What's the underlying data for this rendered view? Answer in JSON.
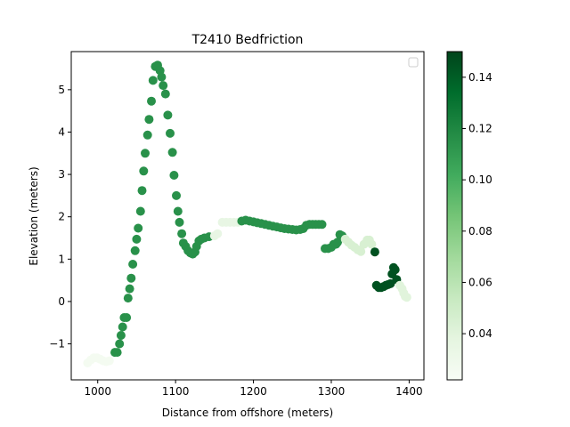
{
  "chart_data": {
    "type": "scatter",
    "title": "T2410 Bedfriction",
    "xlabel": "Distance from offshore (meters)",
    "ylabel": "Elevation (meters)",
    "xlim": [
      966,
      1419
    ],
    "ylim": [
      -1.85,
      5.9
    ],
    "xticks": [
      1000,
      1100,
      1200,
      1300,
      1400
    ],
    "yticks": [
      -1,
      0,
      1,
      2,
      3,
      4,
      5
    ],
    "grid": false,
    "legend": {
      "placement": "upper right",
      "entries": []
    },
    "colorbar": {
      "colormap": "Greens",
      "min": 0.022,
      "max": 0.15,
      "ticks": [
        "0.04",
        "0.06",
        "0.08",
        "0.10",
        "0.12",
        "0.14"
      ]
    },
    "points": [
      [
        987,
        -1.45,
        0.025
      ],
      [
        991,
        -1.38,
        0.025
      ],
      [
        995,
        -1.33,
        0.025
      ],
      [
        999,
        -1.33,
        0.025
      ],
      [
        1003,
        -1.36,
        0.025
      ],
      [
        1007,
        -1.4,
        0.025
      ],
      [
        1011,
        -1.42,
        0.025
      ],
      [
        1015,
        -1.4,
        0.025
      ],
      [
        1022,
        -1.2,
        0.115
      ],
      [
        1025,
        -1.2,
        0.115
      ],
      [
        1028,
        -1.0,
        0.115
      ],
      [
        1030,
        -0.8,
        0.115
      ],
      [
        1032,
        -0.6,
        0.115
      ],
      [
        1034,
        -0.38,
        0.115
      ],
      [
        1037,
        -0.38,
        0.115
      ],
      [
        1039,
        0.08,
        0.115
      ],
      [
        1041,
        0.3,
        0.115
      ],
      [
        1043,
        0.55,
        0.115
      ],
      [
        1045,
        0.88,
        0.115
      ],
      [
        1048,
        1.2,
        0.115
      ],
      [
        1050,
        1.47,
        0.115
      ],
      [
        1052,
        1.73,
        0.115
      ],
      [
        1055,
        2.13,
        0.115
      ],
      [
        1057,
        2.62,
        0.115
      ],
      [
        1059,
        3.08,
        0.115
      ],
      [
        1061,
        3.5,
        0.115
      ],
      [
        1064,
        3.93,
        0.115
      ],
      [
        1066,
        4.3,
        0.115
      ],
      [
        1069,
        4.73,
        0.115
      ],
      [
        1071,
        5.22,
        0.115
      ],
      [
        1074,
        5.55,
        0.115
      ],
      [
        1077,
        5.58,
        0.115
      ],
      [
        1080,
        5.45,
        0.115
      ],
      [
        1082,
        5.3,
        0.115
      ],
      [
        1084,
        5.1,
        0.115
      ],
      [
        1087,
        4.9,
        0.115
      ],
      [
        1090,
        4.4,
        0.115
      ],
      [
        1093,
        3.97,
        0.115
      ],
      [
        1096,
        3.52,
        0.115
      ],
      [
        1098,
        2.98,
        0.115
      ],
      [
        1101,
        2.5,
        0.115
      ],
      [
        1103,
        2.13,
        0.115
      ],
      [
        1105,
        1.87,
        0.115
      ],
      [
        1108,
        1.6,
        0.115
      ],
      [
        1110,
        1.38,
        0.115
      ],
      [
        1113,
        1.3,
        0.115
      ],
      [
        1116,
        1.2,
        0.115
      ],
      [
        1119,
        1.15,
        0.115
      ],
      [
        1122,
        1.12,
        0.115
      ],
      [
        1125,
        1.17,
        0.115
      ],
      [
        1127,
        1.3,
        0.115
      ],
      [
        1130,
        1.43,
        0.115
      ],
      [
        1133,
        1.47,
        0.115
      ],
      [
        1137,
        1.5,
        0.115
      ],
      [
        1143,
        1.53,
        0.115
      ],
      [
        1150,
        1.55,
        0.035
      ],
      [
        1154,
        1.6,
        0.035
      ],
      [
        1160,
        1.87,
        0.035
      ],
      [
        1165,
        1.87,
        0.035
      ],
      [
        1170,
        1.87,
        0.035
      ],
      [
        1175,
        1.87,
        0.035
      ],
      [
        1180,
        1.87,
        0.035
      ],
      [
        1185,
        1.9,
        0.115
      ],
      [
        1190,
        1.92,
        0.115
      ],
      [
        1195,
        1.9,
        0.115
      ],
      [
        1200,
        1.88,
        0.115
      ],
      [
        1205,
        1.86,
        0.115
      ],
      [
        1210,
        1.84,
        0.115
      ],
      [
        1215,
        1.82,
        0.115
      ],
      [
        1220,
        1.8,
        0.115
      ],
      [
        1225,
        1.78,
        0.115
      ],
      [
        1230,
        1.76,
        0.115
      ],
      [
        1235,
        1.74,
        0.115
      ],
      [
        1240,
        1.72,
        0.115
      ],
      [
        1245,
        1.71,
        0.115
      ],
      [
        1250,
        1.7,
        0.115
      ],
      [
        1255,
        1.69,
        0.115
      ],
      [
        1260,
        1.7,
        0.115
      ],
      [
        1264,
        1.72,
        0.115
      ],
      [
        1268,
        1.8,
        0.115
      ],
      [
        1272,
        1.82,
        0.115
      ],
      [
        1276,
        1.82,
        0.115
      ],
      [
        1280,
        1.82,
        0.115
      ],
      [
        1284,
        1.82,
        0.115
      ],
      [
        1288,
        1.82,
        0.115
      ],
      [
        1292,
        1.25,
        0.115
      ],
      [
        1296,
        1.25,
        0.115
      ],
      [
        1300,
        1.28,
        0.115
      ],
      [
        1303,
        1.35,
        0.115
      ],
      [
        1306,
        1.35,
        0.115
      ],
      [
        1308,
        1.4,
        0.115
      ],
      [
        1311,
        1.58,
        0.115
      ],
      [
        1314,
        1.55,
        0.115
      ],
      [
        1318,
        1.47,
        0.045
      ],
      [
        1322,
        1.4,
        0.045
      ],
      [
        1326,
        1.33,
        0.045
      ],
      [
        1330,
        1.28,
        0.045
      ],
      [
        1334,
        1.22,
        0.045
      ],
      [
        1338,
        1.18,
        0.045
      ],
      [
        1342,
        1.35,
        0.045
      ],
      [
        1346,
        1.45,
        0.045
      ],
      [
        1349,
        1.45,
        0.045
      ],
      [
        1352,
        1.35,
        0.045
      ],
      [
        1356,
        1.17,
        0.145
      ],
      [
        1358,
        0.38,
        0.145
      ],
      [
        1361,
        0.33,
        0.145
      ],
      [
        1364,
        0.33,
        0.145
      ],
      [
        1367,
        0.35,
        0.145
      ],
      [
        1370,
        0.38,
        0.145
      ],
      [
        1373,
        0.4,
        0.145
      ],
      [
        1376,
        0.42,
        0.145
      ],
      [
        1378,
        0.65,
        0.145
      ],
      [
        1380,
        0.8,
        0.145
      ],
      [
        1382,
        0.75,
        0.145
      ],
      [
        1384,
        0.52,
        0.145
      ],
      [
        1388,
        0.38,
        0.04
      ],
      [
        1391,
        0.3,
        0.04
      ],
      [
        1393,
        0.2,
        0.04
      ],
      [
        1395,
        0.12,
        0.04
      ],
      [
        1397,
        0.1,
        0.04
      ]
    ]
  }
}
